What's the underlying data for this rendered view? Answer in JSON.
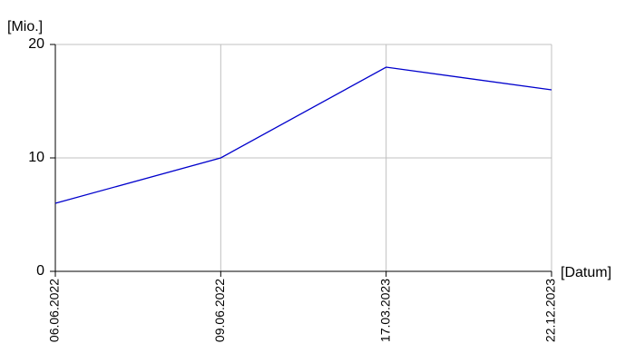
{
  "chart_data": {
    "type": "line",
    "y_label": "[Mio.]",
    "x_label": "[Datum]",
    "categories": [
      "06.06.2022",
      "09.06.2022",
      "17.03.2023",
      "22.12.2023"
    ],
    "series": [
      {
        "name": "Mio.",
        "color": "#0000cc",
        "values": [
          6,
          10,
          18,
          16
        ]
      }
    ],
    "ylim": [
      0,
      20
    ],
    "yticks": [
      0,
      10,
      20
    ],
    "grid": true
  }
}
